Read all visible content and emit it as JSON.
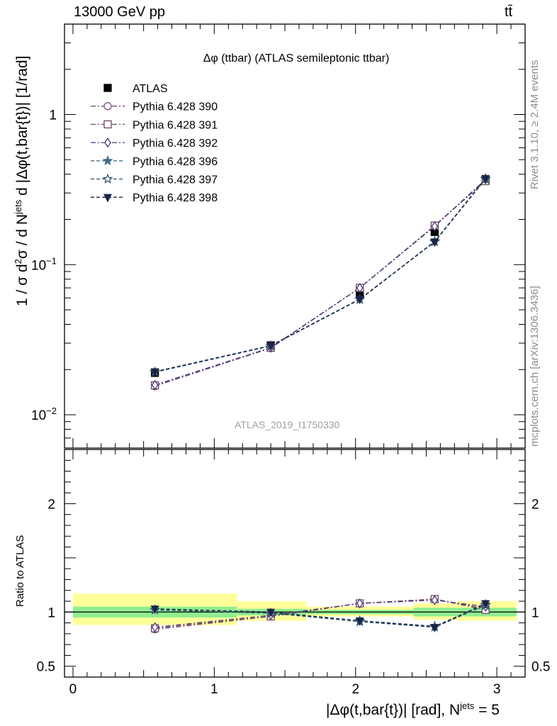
{
  "header": {
    "left": "13000 GeV pp",
    "right": "tt̄"
  },
  "side_labels": {
    "rivet": "Rivet 3.1.10, ≥ 2.4M events",
    "mcplots": "mcplots.cern.ch [arXiv:1306.3436]"
  },
  "colors": {
    "band_inner": "#90ee90",
    "band_outer": "#ffff99",
    "data": "#000000",
    "p390": "#7b4f86",
    "p391": "#6d4660",
    "p392": "#4b3480",
    "p396": "#3f6e86",
    "p397": "#2f4f72",
    "p398": "#1a2445"
  },
  "chart_data": [
    {
      "type": "line",
      "title": "Δφ (ttbar) (ATLAS semileptonic ttbar)",
      "watermark": "ATLAS_2019_I1750330",
      "ylabel": "1 / σ d²σ / d N^jets d |Δφ(t,bar{t})| [1/rad]",
      "yscale": "log",
      "ylim": [
        0.006,
        4.0
      ],
      "xlim": [
        -0.06,
        3.2
      ],
      "ytick_labels": [
        "10^-2",
        "10^-1",
        "1"
      ],
      "x": [
        0.58,
        1.4,
        2.03,
        2.56,
        2.92
      ],
      "legend": [
        "ATLAS",
        "Pythia 6.428 390",
        "Pythia 6.428 391",
        "Pythia 6.428 392",
        "Pythia 6.428 396",
        "Pythia 6.428 397",
        "Pythia 6.428 398"
      ],
      "legend_position": "top-left",
      "series": [
        {
          "name": "ATLAS",
          "marker": "square-filled",
          "values": [
            0.019,
            0.029,
            0.064,
            0.165,
            0.365
          ]
        },
        {
          "name": "Pythia 6.428 390",
          "marker": "circle-open",
          "values": [
            0.0155,
            0.0278,
            0.07,
            0.182,
            0.365
          ]
        },
        {
          "name": "Pythia 6.428 391",
          "marker": "square-open",
          "values": [
            0.0157,
            0.0279,
            0.07,
            0.182,
            0.36
          ]
        },
        {
          "name": "Pythia 6.428 392",
          "marker": "diamond-open",
          "values": [
            0.0158,
            0.028,
            0.07,
            0.18,
            0.37
          ]
        },
        {
          "name": "Pythia 6.428 396",
          "marker": "star-filled",
          "values": [
            0.0193,
            0.0288,
            0.0585,
            0.142,
            0.37
          ]
        },
        {
          "name": "Pythia 6.428 397",
          "marker": "star-open",
          "values": [
            0.0192,
            0.0287,
            0.0588,
            0.143,
            0.375
          ]
        },
        {
          "name": "Pythia 6.428 398",
          "marker": "triangle-down-filled",
          "values": [
            0.0194,
            0.0289,
            0.059,
            0.142,
            0.376
          ]
        }
      ]
    },
    {
      "type": "line",
      "ylabel": "Ratio to ATLAS",
      "xlabel": "|Δφ(t,bar{t})| [rad], N^jets = 5",
      "ylim": [
        0.4,
        2.5
      ],
      "xlim": [
        -0.06,
        3.2
      ],
      "xtick_labels": [
        "0",
        "1",
        "2",
        "3"
      ],
      "ytick_labels": [
        "0.5",
        "1",
        "2"
      ],
      "bands": [
        {
          "x0": 0.0,
          "x1": 1.16,
          "inner": [
            0.95,
            1.05
          ],
          "outer": [
            0.88,
            1.17
          ]
        },
        {
          "x0": 1.16,
          "x1": 1.65,
          "inner": [
            0.97,
            1.03
          ],
          "outer": [
            0.92,
            1.1
          ]
        },
        {
          "x0": 1.65,
          "x1": 2.41,
          "inner": [
            0.98,
            1.02
          ],
          "outer": [
            0.96,
            1.05
          ]
        },
        {
          "x0": 2.41,
          "x1": 2.72,
          "inner": [
            0.96,
            1.04
          ],
          "outer": [
            0.93,
            1.08
          ]
        },
        {
          "x0": 2.72,
          "x1": 3.14,
          "inner": [
            0.96,
            1.04
          ],
          "outer": [
            0.92,
            1.1
          ]
        }
      ],
      "x": [
        0.58,
        1.4,
        2.03,
        2.56,
        2.92
      ],
      "series": [
        {
          "name": "Pythia 6.428 390",
          "values": [
            0.84,
            0.96,
            1.08,
            1.12,
            1.03
          ]
        },
        {
          "name": "Pythia 6.428 391",
          "values": [
            0.85,
            0.96,
            1.08,
            1.12,
            1.02
          ]
        },
        {
          "name": "Pythia 6.428 392",
          "values": [
            0.86,
            0.97,
            1.08,
            1.11,
            1.05
          ]
        },
        {
          "name": "Pythia 6.428 396",
          "values": [
            1.02,
            0.99,
            0.91,
            0.86,
            1.06
          ]
        },
        {
          "name": "Pythia 6.428 397",
          "values": [
            1.02,
            0.99,
            0.92,
            0.87,
            1.07
          ]
        },
        {
          "name": "Pythia 6.428 398",
          "values": [
            1.03,
            1.0,
            0.92,
            0.86,
            1.08
          ]
        }
      ]
    }
  ]
}
